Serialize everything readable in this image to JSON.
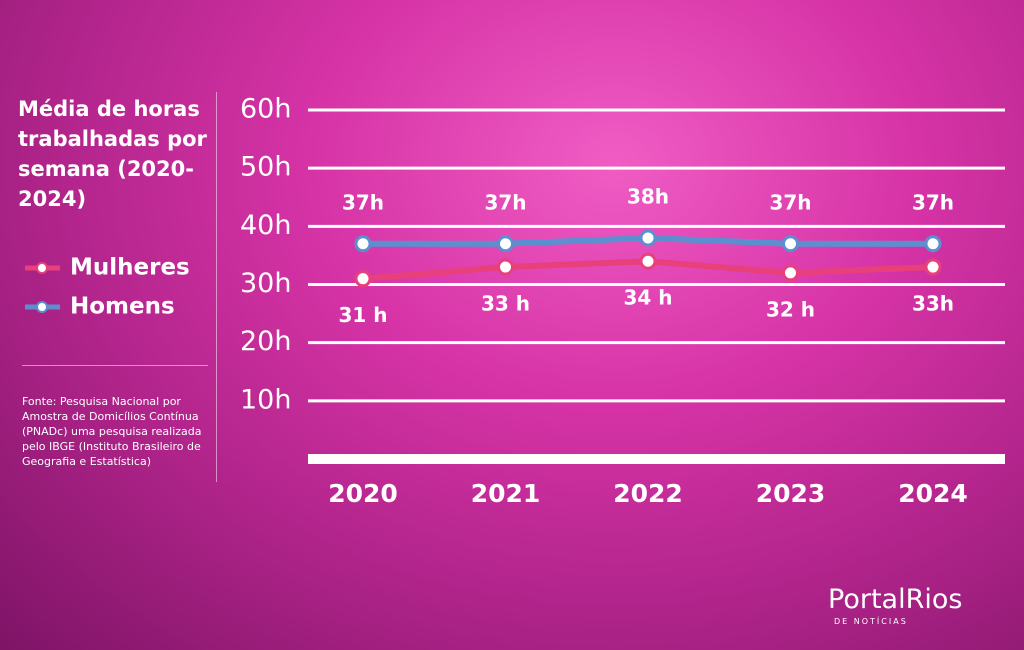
{
  "chart_data": {
    "type": "line",
    "title": "Média de horas trabalhadas por semana (2020-2024)",
    "source": "Fonte:  Pesquisa Nacional por Amostra de Domicílios Contínua (PNADc) uma pesquisa realizada pelo IBGE (Instituto Brasileiro de Geografia e Estatística)",
    "categories": [
      "2020",
      "2021",
      "2022",
      "2023",
      "2024"
    ],
    "series": [
      {
        "name": "Mulheres",
        "color": "#e8407a",
        "values": [
          31,
          33,
          34,
          32,
          33
        ],
        "value_labels": [
          "31 h",
          "33 h",
          "34 h",
          "32 h",
          "33h"
        ]
      },
      {
        "name": "Homens",
        "color": "#5b8fd0",
        "values": [
          37,
          37,
          38,
          37,
          37
        ],
        "value_labels": [
          "37h",
          "37h",
          "38h",
          "37h",
          "37h"
        ]
      }
    ],
    "ylim": [
      0,
      60
    ],
    "yticks": [
      {
        "value": 10,
        "label": "10h"
      },
      {
        "value": 20,
        "label": "20h"
      },
      {
        "value": 30,
        "label": "30h"
      },
      {
        "value": 40,
        "label": "40h"
      },
      {
        "value": 50,
        "label": "50h"
      },
      {
        "value": 60,
        "label": "60h"
      }
    ],
    "grid": true,
    "logo_text": "PortalRios",
    "logo_tagline": "DE NOTÍCIAS"
  }
}
